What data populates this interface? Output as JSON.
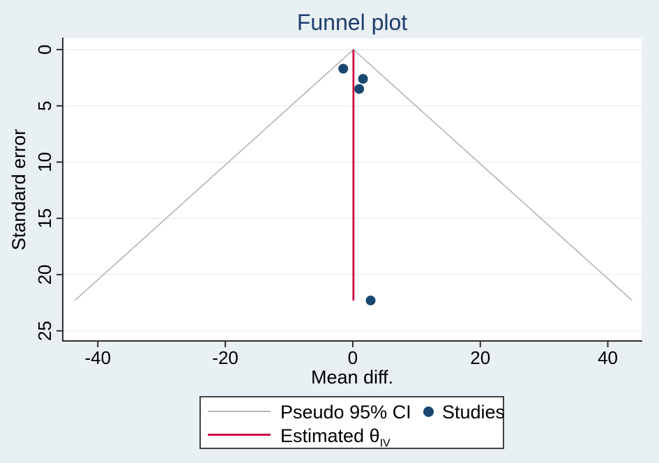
{
  "window": {
    "background": "#e9f0f3"
  },
  "chart_data": {
    "type": "scatter",
    "title": "Funnel plot",
    "xlabel": "Mean diff.",
    "ylabel": "Standard error",
    "x_ticks": [
      -40,
      -20,
      0,
      20,
      40
    ],
    "y_ticks": [
      0,
      5,
      10,
      15,
      20,
      25
    ],
    "xlim": [
      -45.5,
      45.3
    ],
    "ylim": [
      -1.0,
      25.9
    ],
    "y_axis_inverted": true,
    "grid": "horizontal",
    "points": [
      {
        "x": -1.5,
        "y": 1.7
      },
      {
        "x": 1.6,
        "y": 2.6
      },
      {
        "x": 1.0,
        "y": 3.5
      },
      {
        "x": 2.8,
        "y": 22.3
      }
    ],
    "estimate_line": {
      "x": 0.1,
      "y_from": 0,
      "y_to": 22.3
    },
    "pseudo_ci": {
      "center_x": 0.1,
      "apex_y": 0,
      "max_se": 22.3,
      "z": 1.96
    },
    "colors": {
      "background": "#e9f0f3",
      "plot_background": "#ffffff",
      "grid": "#e2ecef",
      "axis": "#2e2e2e",
      "tick_label": "#000000",
      "title": "#1e3c6e",
      "pseudo_ci_line": "#b1b4b6",
      "estimate_line": "#d10b41",
      "marker": "#1a476f"
    },
    "legend_position": "bottom"
  },
  "legend": {
    "pseudo_ci_label": "Pseudo 95% CI",
    "studies_label": "Studies",
    "estimated_label": "Estimated θ",
    "estimated_sub": "IV"
  }
}
